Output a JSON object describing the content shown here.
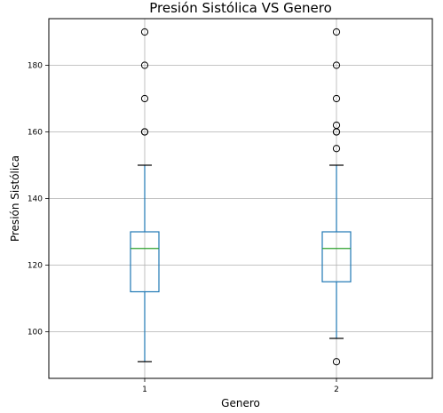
{
  "chart_data": {
    "type": "box",
    "title": "Presión Sistólica VS Genero",
    "xlabel": "Genero",
    "ylabel": "Presión Sistólica",
    "ylim": [
      86,
      194
    ],
    "yticks": [
      100,
      120,
      140,
      160,
      180
    ],
    "categories": [
      "1",
      "2"
    ],
    "grid": true,
    "series": [
      {
        "category": "1",
        "whisker_low": 91,
        "q1": 112,
        "median": 125,
        "q3": 130,
        "whisker_high": 150,
        "outliers": [
          160,
          160,
          170,
          180,
          190
        ]
      },
      {
        "category": "2",
        "whisker_low": 98,
        "q1": 115,
        "median": 125,
        "q3": 130,
        "whisker_high": 150,
        "outliers": [
          91,
          155,
          160,
          160,
          162,
          170,
          180,
          190
        ]
      }
    ],
    "colors": {
      "box": "#1f77b4",
      "median": "#2ca02c",
      "caps": "#000000",
      "outlier": "#000000",
      "grid": "#b0b0b0",
      "frame": "#000000"
    }
  }
}
